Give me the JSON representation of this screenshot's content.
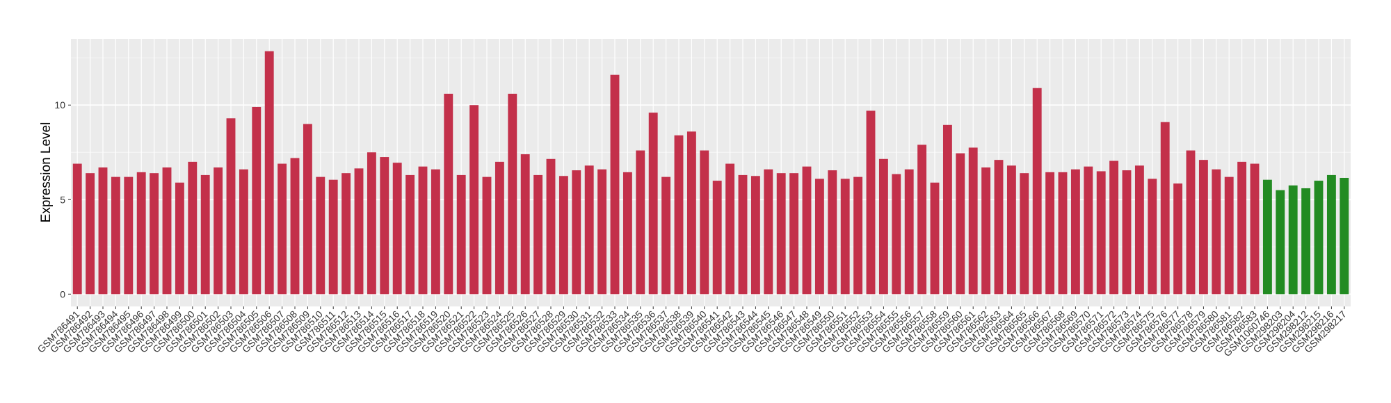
{
  "chart_data": {
    "type": "bar",
    "y_label": "Expression Level",
    "categories": [
      "GSM786491",
      "GSM786492",
      "GSM786493",
      "GSM786494",
      "GSM786495",
      "GSM786496",
      "GSM786497",
      "GSM786498",
      "GSM786499",
      "GSM786500",
      "GSM786501",
      "GSM786502",
      "GSM786503",
      "GSM786504",
      "GSM786505",
      "GSM786506",
      "GSM786507",
      "GSM786508",
      "GSM786509",
      "GSM786510",
      "GSM786511",
      "GSM786512",
      "GSM786513",
      "GSM786514",
      "GSM786515",
      "GSM786516",
      "GSM786517",
      "GSM786518",
      "GSM786519",
      "GSM786520",
      "GSM786521",
      "GSM786522",
      "GSM786523",
      "GSM786524",
      "GSM786525",
      "GSM786526",
      "GSM786527",
      "GSM786528",
      "GSM786529",
      "GSM786530",
      "GSM786531",
      "GSM786532",
      "GSM786533",
      "GSM786534",
      "GSM786535",
      "GSM786536",
      "GSM786537",
      "GSM786538",
      "GSM786539",
      "GSM786540",
      "GSM786541",
      "GSM786542",
      "GSM786543",
      "GSM786544",
      "GSM786545",
      "GSM786546",
      "GSM786547",
      "GSM786548",
      "GSM786549",
      "GSM786550",
      "GSM786551",
      "GSM786552",
      "GSM786553",
      "GSM786554",
      "GSM786555",
      "GSM786556",
      "GSM786557",
      "GSM786558",
      "GSM786559",
      "GSM786560",
      "GSM786561",
      "GSM786562",
      "GSM786563",
      "GSM786564",
      "GSM786565",
      "GSM786566",
      "GSM786567",
      "GSM786568",
      "GSM786569",
      "GSM786570",
      "GSM786571",
      "GSM786572",
      "GSM786573",
      "GSM786574",
      "GSM786575",
      "GSM786576",
      "GSM786577",
      "GSM786578",
      "GSM786579",
      "GSM786580",
      "GSM786581",
      "GSM786582",
      "GSM786583",
      "GSM1060746",
      "GSM298203",
      "GSM298204",
      "GSM298212",
      "GSM298215",
      "GSM298216",
      "GSM298217"
    ],
    "values": [
      6.9,
      6.4,
      6.7,
      6.2,
      6.2,
      6.45,
      6.4,
      6.7,
      5.9,
      7.0,
      6.3,
      6.7,
      9.3,
      6.6,
      9.9,
      12.85,
      6.9,
      7.2,
      9.0,
      6.2,
      6.05,
      6.4,
      6.65,
      7.5,
      7.25,
      6.95,
      6.3,
      6.75,
      6.6,
      10.6,
      6.3,
      10.0,
      6.2,
      7.0,
      10.6,
      7.4,
      6.3,
      7.15,
      6.25,
      6.55,
      6.8,
      6.6,
      11.6,
      6.45,
      7.6,
      9.6,
      6.2,
      8.4,
      8.6,
      7.6,
      6.0,
      6.9,
      6.3,
      6.25,
      6.6,
      6.4,
      6.4,
      6.75,
      6.1,
      6.55,
      6.1,
      6.2,
      9.7,
      7.15,
      6.35,
      6.6,
      7.9,
      5.9,
      8.95,
      7.45,
      7.75,
      6.7,
      7.1,
      6.8,
      6.4,
      10.9,
      6.45,
      6.45,
      6.6,
      6.75,
      6.5,
      7.05,
      6.55,
      6.8,
      6.1,
      9.1,
      5.85,
      7.6,
      7.1,
      6.6,
      6.2,
      7.0,
      6.9,
      6.05,
      5.5,
      5.75,
      5.6,
      6.0,
      6.3,
      6.15
    ],
    "colors": [
      "#c3304a",
      "#c3304a",
      "#c3304a",
      "#c3304a",
      "#c3304a",
      "#c3304a",
      "#c3304a",
      "#c3304a",
      "#c3304a",
      "#c3304a",
      "#c3304a",
      "#c3304a",
      "#c3304a",
      "#c3304a",
      "#c3304a",
      "#c3304a",
      "#c3304a",
      "#c3304a",
      "#c3304a",
      "#c3304a",
      "#c3304a",
      "#c3304a",
      "#c3304a",
      "#c3304a",
      "#c3304a",
      "#c3304a",
      "#c3304a",
      "#c3304a",
      "#c3304a",
      "#c3304a",
      "#c3304a",
      "#c3304a",
      "#c3304a",
      "#c3304a",
      "#c3304a",
      "#c3304a",
      "#c3304a",
      "#c3304a",
      "#c3304a",
      "#c3304a",
      "#c3304a",
      "#c3304a",
      "#c3304a",
      "#c3304a",
      "#c3304a",
      "#c3304a",
      "#c3304a",
      "#c3304a",
      "#c3304a",
      "#c3304a",
      "#c3304a",
      "#c3304a",
      "#c3304a",
      "#c3304a",
      "#c3304a",
      "#c3304a",
      "#c3304a",
      "#c3304a",
      "#c3304a",
      "#c3304a",
      "#c3304a",
      "#c3304a",
      "#c3304a",
      "#c3304a",
      "#c3304a",
      "#c3304a",
      "#c3304a",
      "#c3304a",
      "#c3304a",
      "#c3304a",
      "#c3304a",
      "#c3304a",
      "#c3304a",
      "#c3304a",
      "#c3304a",
      "#c3304a",
      "#c3304a",
      "#c3304a",
      "#c3304a",
      "#c3304a",
      "#c3304a",
      "#c3304a",
      "#c3304a",
      "#c3304a",
      "#c3304a",
      "#c3304a",
      "#c3304a",
      "#c3304a",
      "#c3304a",
      "#c3304a",
      "#c3304a",
      "#c3304a",
      "#c3304a",
      "#228b22",
      "#228b22",
      "#228b22",
      "#228b22",
      "#228b22",
      "#228b22",
      "#228b22"
    ],
    "ylim": [
      -0.65,
      13.5
    ],
    "yticks": [
      0,
      5,
      10
    ],
    "grid": true
  }
}
